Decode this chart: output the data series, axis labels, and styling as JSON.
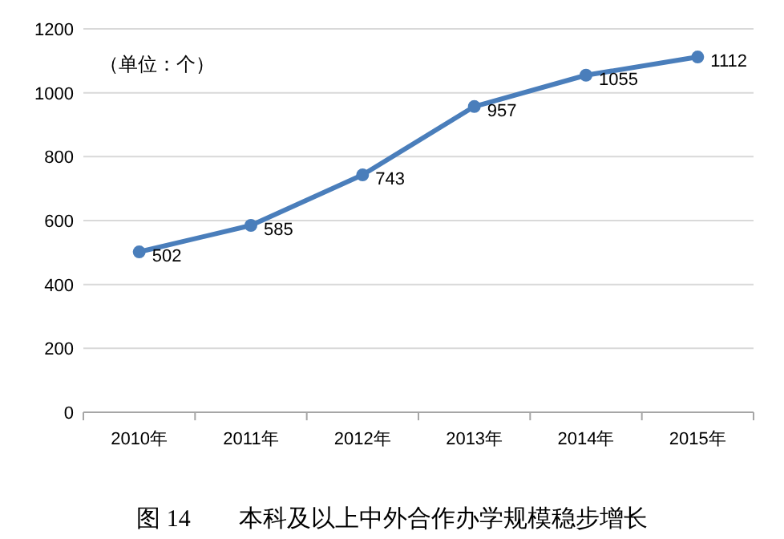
{
  "chart_data": {
    "type": "line",
    "ylabel": "（单位：个）",
    "annotations": [
      "图 14　　本科及以上中外合作办学规模稳步增长"
    ],
    "categories": [
      "2010年",
      "2011年",
      "2012年",
      "2013年",
      "2014年",
      "2015年"
    ],
    "series": [
      {
        "color": "#4a7ebb",
        "values": [
          502,
          585,
          743,
          957,
          1055,
          1112
        ]
      }
    ],
    "ylim": [
      0,
      1200
    ],
    "yticks": [
      0,
      200,
      400,
      600,
      800,
      1000,
      1200
    ],
    "grid": "y",
    "data_labels": true,
    "marker": "circle",
    "line_style": "solid"
  }
}
